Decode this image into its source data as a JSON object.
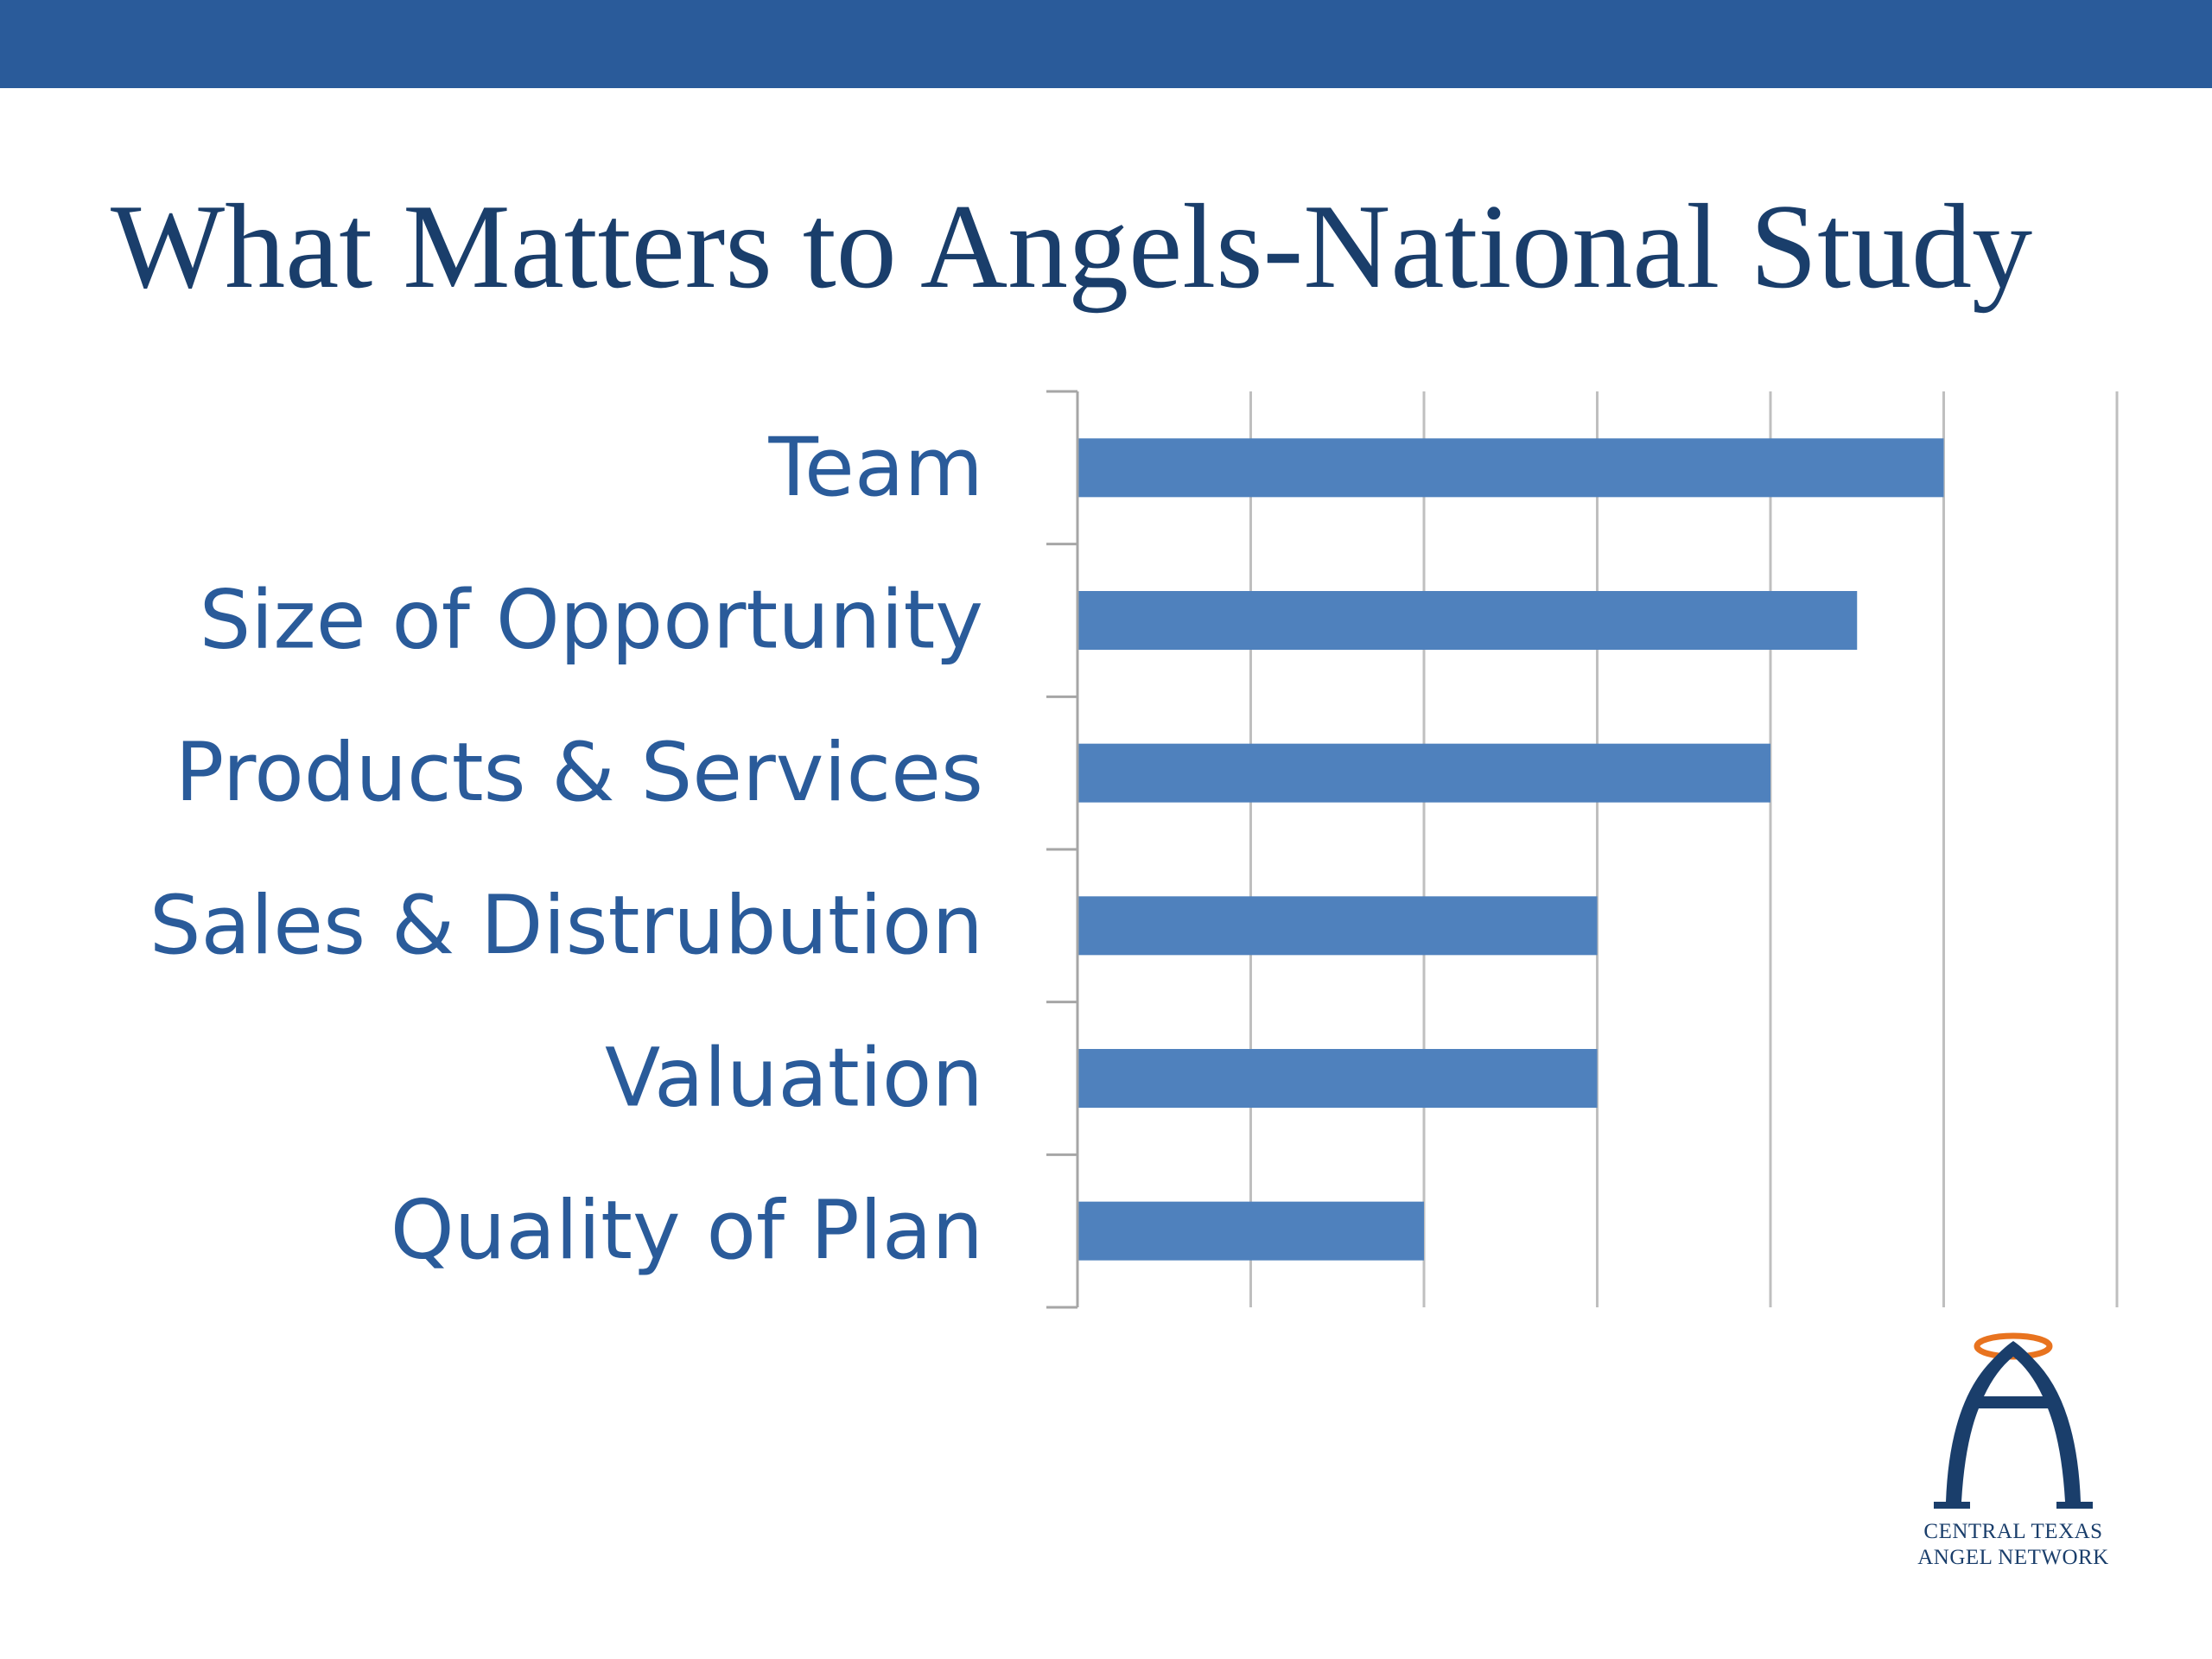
{
  "slide": {
    "title": "What Matters to Angels-National Study"
  },
  "logo": {
    "line1": "CENTRAL TEXAS",
    "line2": "ANGEL NETWORK",
    "colors": {
      "arch": "#1a3e6b",
      "halo": "#e8731f"
    }
  },
  "chart_data": {
    "type": "bar",
    "orientation": "horizontal",
    "title": "",
    "xlabel": "",
    "ylabel": "",
    "categories": [
      "Team",
      "Size of Opportunity",
      "Products & Services",
      "Sales & Distrubution",
      "Valuation",
      "Quality of Plan"
    ],
    "values": [
      5,
      4.5,
      4,
      3,
      3,
      2
    ],
    "xlim": [
      0,
      6
    ],
    "major_unit": 1,
    "grid": true,
    "tick_labels_shown": false,
    "legend": "none",
    "colors": {
      "bar": "#4f81bd",
      "label": "#2a5b9a",
      "grid": "#bfbfbf",
      "axis": "#a6a6a6"
    }
  }
}
